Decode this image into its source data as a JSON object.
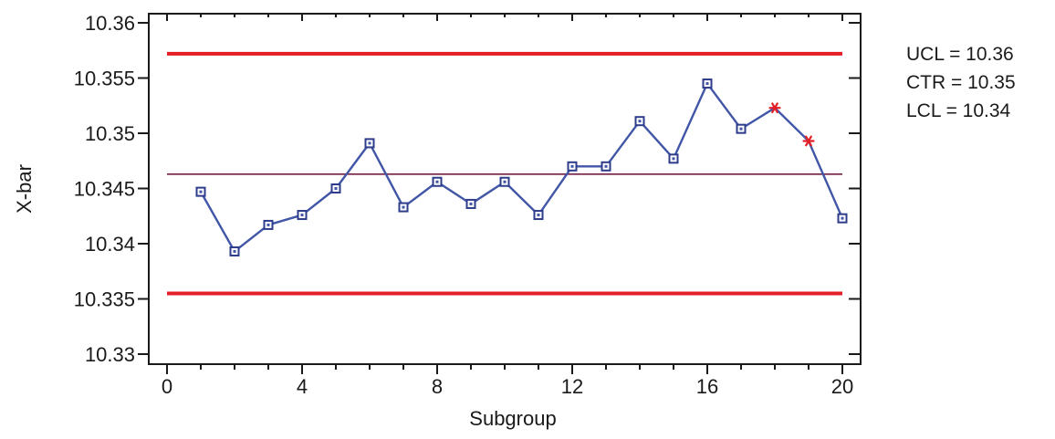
{
  "chart_data": {
    "type": "line",
    "subtype": "xbar-control-chart",
    "title": "",
    "xlabel": "Subgroup",
    "ylabel": "X-bar",
    "x": [
      1,
      2,
      3,
      4,
      5,
      6,
      7,
      8,
      9,
      10,
      11,
      12,
      13,
      14,
      15,
      16,
      17,
      18,
      19,
      20
    ],
    "values": [
      10.3447,
      10.3393,
      10.3417,
      10.3426,
      10.345,
      10.3491,
      10.3433,
      10.3456,
      10.3436,
      10.3456,
      10.3426,
      10.347,
      10.347,
      10.3511,
      10.3477,
      10.3545,
      10.3504,
      10.3523,
      10.3493,
      10.3423
    ],
    "flagged_subgroups": [
      18,
      19
    ],
    "control_lines": {
      "ucl": 10.3572,
      "center": 10.3463,
      "lcl": 10.3355
    },
    "xlim": [
      0,
      20
    ],
    "ylim": [
      10.33,
      10.36
    ],
    "x_major_ticks": [
      0,
      4,
      8,
      12,
      16,
      20
    ],
    "x_tick_labels": [
      "0",
      "4",
      "8",
      "12",
      "16",
      "20"
    ],
    "x_minor_tick_step": 1,
    "y_ticks": [
      10.36,
      10.355,
      10.35,
      10.345,
      10.34,
      10.335,
      10.33
    ],
    "y_tick_labels": [
      "10.36",
      "10.355",
      "10.35",
      "10.345",
      "10.34",
      "10.335",
      "10.33"
    ],
    "grid": false,
    "legend_position": "right"
  },
  "legend": {
    "ucl": "UCL = 10.36",
    "ctr": "CTR = 10.35",
    "lcl": "LCL = 10.34"
  },
  "colors": {
    "control_limit": "#e31e26",
    "center_line": "#731f40",
    "series_line": "#4156a6",
    "marker_border": "#2e3c8c",
    "marker_fill": "#ffffff",
    "flagged_marker": "#e31e26",
    "axis": "#1a1a1a",
    "text": "#1a1a1a",
    "background": "#ffffff"
  }
}
